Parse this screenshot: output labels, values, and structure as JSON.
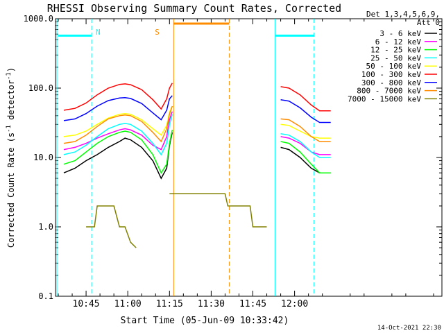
{
  "chart_data": {
    "type": "line",
    "title": "RHESSI Observing Summary Count Rates, Corrected",
    "xlabel": "Start Time (05-Jun-09 10:33:42)",
    "ylabel_parts": [
      "Corrected Count Rate (s",
      "-1",
      " detector",
      "-1",
      ")"
    ],
    "yscale": "log",
    "ylim": [
      0.1,
      1000
    ],
    "xlim_min": [
      34,
      173
    ],
    "x_ticks": [
      {
        "min": 45,
        "label": "10:45"
      },
      {
        "min": 60,
        "label": "11:00"
      },
      {
        "min": 75,
        "label": "11:15"
      },
      {
        "min": 90,
        "label": "11:30"
      },
      {
        "min": 105,
        "label": "11:45"
      },
      {
        "min": 120,
        "label": "12:00"
      }
    ],
    "y_ticks": [
      {
        "value": 0.1,
        "label": "0.1"
      },
      {
        "value": 1,
        "label": "1.0"
      },
      {
        "value": 10,
        "label": "10.0"
      },
      {
        "value": 100,
        "label": "100.0"
      },
      {
        "value": 1000,
        "label": "1000.0"
      }
    ],
    "legend_title": [
      "Det 1,3,4,5,6,9,",
      "Att 0"
    ],
    "legend_position": "right",
    "series": [
      {
        "name": "3 - 6 keV",
        "color": "#000000",
        "values": [
          [
            37,
            6
          ],
          [
            41,
            7
          ],
          [
            45,
            9
          ],
          [
            49,
            11
          ],
          [
            53,
            14
          ],
          [
            57,
            17
          ],
          [
            59,
            19
          ],
          [
            61,
            18
          ],
          [
            65,
            14
          ],
          [
            69,
            9
          ],
          [
            72,
            5
          ],
          [
            74,
            7
          ],
          [
            75,
            15
          ],
          [
            76,
            23
          ],
          [
            115,
            14
          ],
          [
            118,
            13
          ],
          [
            122,
            10
          ],
          [
            126,
            7
          ],
          [
            129,
            6
          ],
          [
            133,
            6
          ]
        ]
      },
      {
        "name": "6 - 12 keV",
        "color": "#ff00ff",
        "values": [
          [
            37,
            13
          ],
          [
            41,
            14
          ],
          [
            45,
            16
          ],
          [
            49,
            19
          ],
          [
            53,
            22
          ],
          [
            57,
            25
          ],
          [
            59,
            26
          ],
          [
            61,
            25
          ],
          [
            65,
            21
          ],
          [
            69,
            15
          ],
          [
            72,
            13
          ],
          [
            74,
            20
          ],
          [
            75,
            35
          ],
          [
            76,
            46
          ],
          [
            115,
            20
          ],
          [
            118,
            19
          ],
          [
            122,
            16
          ],
          [
            126,
            12
          ],
          [
            129,
            11
          ],
          [
            133,
            11
          ]
        ]
      },
      {
        "name": "12 - 25 keV",
        "color": "#00ff00",
        "values": [
          [
            37,
            8
          ],
          [
            41,
            9
          ],
          [
            45,
            12
          ],
          [
            49,
            16
          ],
          [
            53,
            20
          ],
          [
            57,
            23
          ],
          [
            59,
            24
          ],
          [
            61,
            23
          ],
          [
            65,
            18
          ],
          [
            69,
            11
          ],
          [
            72,
            6
          ],
          [
            74,
            8
          ],
          [
            75,
            16
          ],
          [
            76,
            25
          ],
          [
            115,
            17
          ],
          [
            118,
            16
          ],
          [
            122,
            12
          ],
          [
            126,
            8
          ],
          [
            129,
            6
          ],
          [
            133,
            6
          ]
        ]
      },
      {
        "name": "25 - 50 keV",
        "color": "#00ffff",
        "values": [
          [
            37,
            11
          ],
          [
            41,
            12
          ],
          [
            45,
            15
          ],
          [
            49,
            20
          ],
          [
            53,
            26
          ],
          [
            57,
            30
          ],
          [
            59,
            31
          ],
          [
            61,
            30
          ],
          [
            65,
            24
          ],
          [
            69,
            16
          ],
          [
            72,
            11
          ],
          [
            74,
            16
          ],
          [
            75,
            30
          ],
          [
            76,
            42
          ],
          [
            115,
            22
          ],
          [
            118,
            21
          ],
          [
            122,
            17
          ],
          [
            126,
            12
          ],
          [
            129,
            10
          ],
          [
            133,
            10
          ]
        ]
      },
      {
        "name": "50 - 100 keV",
        "color": "#ffff00",
        "values": [
          [
            37,
            20
          ],
          [
            41,
            21
          ],
          [
            45,
            24
          ],
          [
            49,
            30
          ],
          [
            53,
            37
          ],
          [
            57,
            42
          ],
          [
            59,
            43
          ],
          [
            61,
            42
          ],
          [
            65,
            35
          ],
          [
            69,
            26
          ],
          [
            72,
            21
          ],
          [
            74,
            29
          ],
          [
            75,
            45
          ],
          [
            76,
            55
          ],
          [
            115,
            30
          ],
          [
            118,
            29
          ],
          [
            122,
            24
          ],
          [
            126,
            20
          ],
          [
            129,
            19
          ],
          [
            133,
            19
          ]
        ]
      },
      {
        "name": "100 - 300 keV",
        "color": "#ff0000",
        "values": [
          [
            37,
            48
          ],
          [
            41,
            51
          ],
          [
            45,
            61
          ],
          [
            49,
            80
          ],
          [
            53,
            100
          ],
          [
            57,
            113
          ],
          [
            59,
            115
          ],
          [
            61,
            112
          ],
          [
            65,
            95
          ],
          [
            69,
            68
          ],
          [
            72,
            50
          ],
          [
            74,
            70
          ],
          [
            75,
            100
          ],
          [
            76,
            118
          ],
          [
            115,
            105
          ],
          [
            118,
            100
          ],
          [
            122,
            80
          ],
          [
            126,
            57
          ],
          [
            129,
            47
          ],
          [
            133,
            47
          ]
        ]
      },
      {
        "name": "300 - 800 keV",
        "color": "#0000ff",
        "values": [
          [
            37,
            34
          ],
          [
            41,
            36
          ],
          [
            45,
            43
          ],
          [
            49,
            55
          ],
          [
            53,
            66
          ],
          [
            57,
            72
          ],
          [
            59,
            73
          ],
          [
            61,
            71
          ],
          [
            65,
            60
          ],
          [
            69,
            44
          ],
          [
            72,
            35
          ],
          [
            74,
            48
          ],
          [
            75,
            70
          ],
          [
            76,
            78
          ],
          [
            115,
            68
          ],
          [
            118,
            65
          ],
          [
            122,
            52
          ],
          [
            126,
            38
          ],
          [
            129,
            32
          ],
          [
            133,
            32
          ]
        ]
      },
      {
        "name": "800 - 7000 keV",
        "color": "#ff8c00",
        "values": [
          [
            37,
            16
          ],
          [
            41,
            17
          ],
          [
            45,
            21
          ],
          [
            49,
            28
          ],
          [
            53,
            36
          ],
          [
            57,
            40
          ],
          [
            59,
            41
          ],
          [
            61,
            40
          ],
          [
            65,
            33
          ],
          [
            69,
            23
          ],
          [
            72,
            17
          ],
          [
            74,
            26
          ],
          [
            75,
            42
          ],
          [
            76,
            55
          ],
          [
            115,
            36
          ],
          [
            118,
            35
          ],
          [
            122,
            28
          ],
          [
            126,
            20
          ],
          [
            129,
            17
          ],
          [
            133,
            17
          ]
        ]
      },
      {
        "name": "7000 - 15000 keV",
        "color": "#808000",
        "values": [
          [
            45,
            1
          ],
          [
            46,
            1
          ],
          [
            47,
            1
          ],
          [
            48,
            1
          ],
          [
            49,
            2
          ],
          [
            50,
            2
          ],
          [
            55,
            2
          ],
          [
            57,
            1
          ],
          [
            59,
            1
          ],
          [
            61,
            0.6
          ],
          [
            63,
            0.5
          ],
          [
            75,
            3
          ],
          [
            76,
            3
          ],
          [
            95,
            3
          ],
          [
            96,
            2
          ],
          [
            104,
            2
          ],
          [
            105,
            1
          ],
          [
            110,
            1
          ]
        ]
      }
    ],
    "annotations": [
      {
        "label": "N",
        "color": "#00ffff",
        "min": 47
      },
      {
        "label": "S",
        "color": "#ff8c00",
        "min": 73
      }
    ],
    "vlines": [
      {
        "min": 34.5,
        "color": "#00ffff",
        "style": "solid"
      },
      {
        "min": 47,
        "color": "#00ffff",
        "style": "dashed"
      },
      {
        "min": 76.5,
        "color": "#ff8c00",
        "style": "solid"
      },
      {
        "min": 96.5,
        "color": "#ff8c00",
        "style": "dashed"
      },
      {
        "min": 113,
        "color": "#00ffff",
        "style": "solid"
      },
      {
        "min": 127,
        "color": "#00ffff",
        "style": "dashed"
      }
    ],
    "hbars": [
      {
        "from": 35,
        "to": 47,
        "value": 570,
        "color": "#00ffff"
      },
      {
        "from": 76.5,
        "to": 96.5,
        "value": 850,
        "color": "#ff8c00"
      },
      {
        "from": 113,
        "to": 127,
        "value": 570,
        "color": "#00ffff"
      }
    ],
    "footer_date": "14-Oct-2021 22:30"
  }
}
